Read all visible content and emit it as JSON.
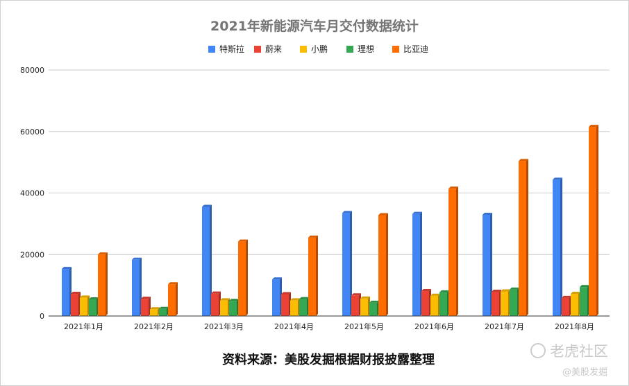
{
  "chart_data": {
    "type": "bar",
    "title": "2021年新能源汽车月交付数据统计",
    "categories": [
      "2021年1月",
      "2021年2月",
      "2021年3月",
      "2021年4月",
      "2021年5月",
      "2021年6月",
      "2021年7月",
      "2021年8月"
    ],
    "series": [
      {
        "name": "特斯拉",
        "color": "#4285f4",
        "values": [
          15300,
          18300,
          35500,
          11900,
          33500,
          33200,
          32900,
          44300
        ]
      },
      {
        "name": "蔚来",
        "color": "#ea4335",
        "values": [
          7200,
          5600,
          7300,
          7100,
          6700,
          8100,
          7900,
          5900
        ]
      },
      {
        "name": "小鹏",
        "color": "#fbbc04",
        "values": [
          6000,
          2200,
          5100,
          5100,
          5700,
          6600,
          8000,
          7200
        ]
      },
      {
        "name": "理想",
        "color": "#34a853",
        "values": [
          5400,
          2300,
          4900,
          5500,
          4300,
          7700,
          8600,
          9400
        ]
      },
      {
        "name": "比亚迪",
        "color": "#ff6d01",
        "values": [
          20000,
          10300,
          24200,
          25500,
          32800,
          41400,
          50400,
          61500
        ]
      }
    ],
    "ylim": [
      0,
      80000
    ],
    "yticks": [
      "0",
      "20000",
      "40000",
      "60000",
      "80000"
    ],
    "grid": true,
    "legend_position": "top"
  },
  "footer": {
    "source": "资料来源：美股发掘根据财报披露整理"
  },
  "watermark": {
    "brand": "老虎社区",
    "handle": "@美股发掘"
  }
}
